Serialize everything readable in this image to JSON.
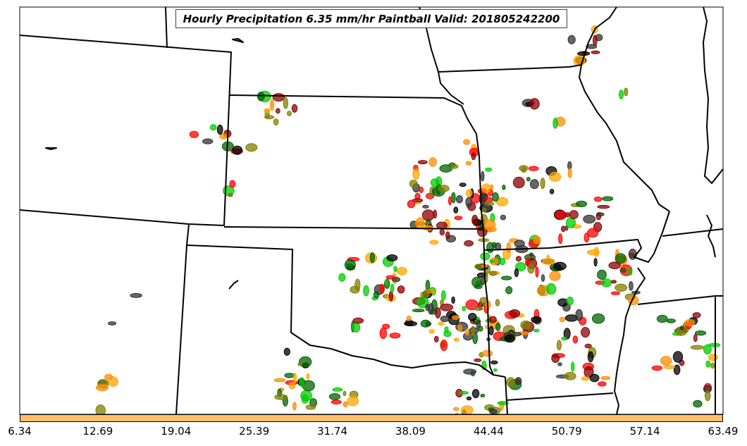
{
  "title": "Hourly Precipitation 6.35 mm/hr Paintball Valid: 201805242200",
  "colorbar": {
    "color": "#ffbe6a",
    "ticks": [
      "6.34",
      "12.69",
      "19.04",
      "25.39",
      "31.74",
      "38.09",
      "44.44",
      "50.79",
      "57.14",
      "63.49"
    ]
  },
  "member_colors": [
    "#ff0000",
    "#00cc00",
    "#ff8c00",
    "#8b0000",
    "#808000",
    "#006400",
    "#ffa500",
    "#000000",
    "#333333"
  ]
}
